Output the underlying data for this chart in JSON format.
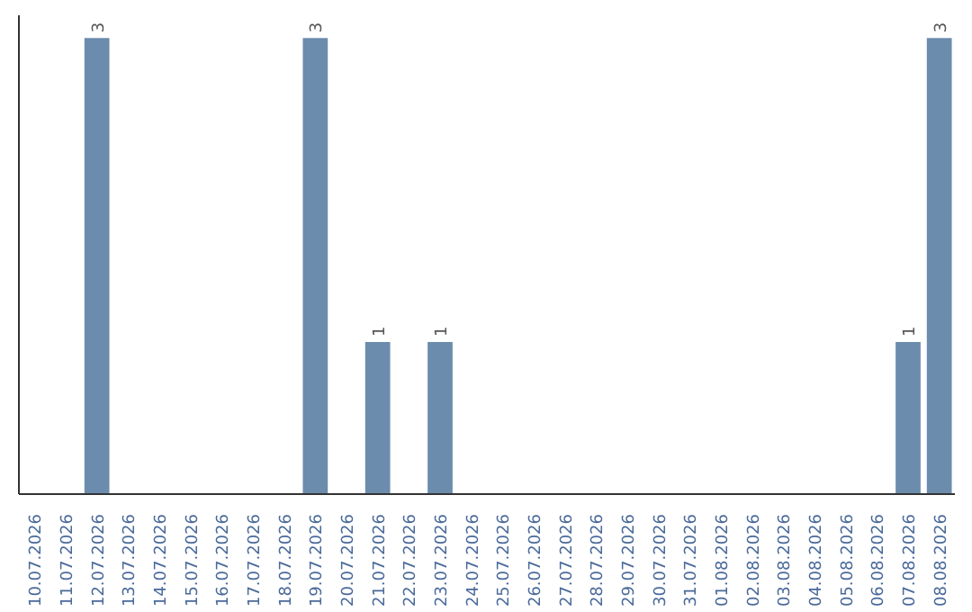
{
  "chart_data": {
    "type": "bar",
    "categories": [
      "10.07.2026",
      "11.07.2026",
      "12.07.2026",
      "13.07.2026",
      "14.07.2026",
      "15.07.2026",
      "16.07.2026",
      "17.07.2026",
      "18.07.2026",
      "19.07.2026",
      "20.07.2026",
      "21.07.2026",
      "22.07.2026",
      "23.07.2026",
      "24.07.2026",
      "25.07.2026",
      "26.07.2026",
      "27.07.2026",
      "28.07.2026",
      "29.07.2026",
      "30.07.2026",
      "31.07.2026",
      "01.08.2026",
      "02.08.2026",
      "03.08.2026",
      "04.08.2026",
      "05.08.2026",
      "06.08.2026",
      "07.08.2026",
      "08.08.2026"
    ],
    "values": [
      0,
      0,
      3,
      0,
      0,
      0,
      0,
      0,
      0,
      3,
      0,
      1,
      0,
      1,
      0,
      0,
      0,
      0,
      0,
      0,
      0,
      0,
      0,
      0,
      0,
      0,
      0,
      0,
      1,
      3
    ],
    "value_labels": [
      null,
      null,
      "3",
      null,
      null,
      null,
      null,
      null,
      null,
      "3",
      null,
      "1",
      null,
      "1",
      null,
      null,
      null,
      null,
      null,
      null,
      null,
      null,
      null,
      null,
      null,
      null,
      null,
      null,
      "1",
      "3"
    ],
    "color": "#6b8cad",
    "ylim": [
      0,
      3.15
    ],
    "tick_labels": "x"
  }
}
